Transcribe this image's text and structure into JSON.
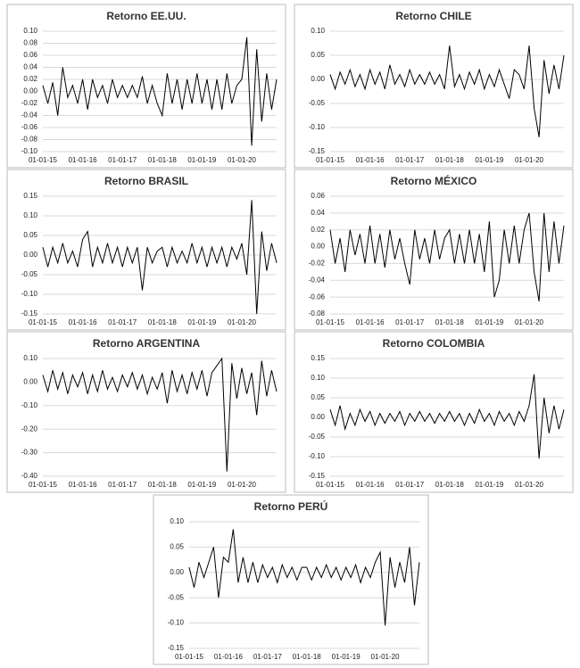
{
  "chart_data": [
    {
      "type": "line",
      "title": "Retorno EE.UU.",
      "color": "#000000",
      "grid": true,
      "categories": [
        "01-01-15",
        null,
        null,
        null,
        null,
        null,
        null,
        null,
        "01-01-16",
        null,
        null,
        null,
        null,
        null,
        null,
        null,
        "01-01-17",
        null,
        null,
        null,
        null,
        null,
        null,
        null,
        "01-01-18",
        null,
        null,
        null,
        null,
        null,
        null,
        null,
        "01-01-19",
        null,
        null,
        null,
        null,
        null,
        null,
        null,
        "01-01-20",
        null,
        null,
        null,
        null,
        null,
        null,
        null
      ],
      "values": [
        0.01,
        -0.02,
        0.015,
        -0.04,
        0.04,
        -0.01,
        0.01,
        -0.02,
        0.02,
        -0.03,
        0.02,
        -0.01,
        0.01,
        -0.02,
        0.02,
        -0.01,
        0.01,
        -0.01,
        0.01,
        -0.01,
        0.025,
        -0.02,
        0.01,
        -0.02,
        -0.04,
        0.03,
        -0.02,
        0.02,
        -0.03,
        0.02,
        -0.02,
        0.03,
        -0.02,
        0.02,
        -0.03,
        0.02,
        -0.03,
        0.03,
        -0.02,
        0.01,
        0.02,
        0.09,
        -0.09,
        0.07,
        -0.05,
        0.03,
        -0.03,
        0.02
      ],
      "ylim": [
        -0.1,
        0.1
      ],
      "yticks": [
        {
          "value": -0.1,
          "label": "-0.10"
        },
        {
          "value": -0.08,
          "label": "-0.08"
        },
        {
          "value": -0.06,
          "label": "-0.06"
        },
        {
          "value": -0.04,
          "label": "-0.04"
        },
        {
          "value": -0.02,
          "label": "-0.02"
        },
        {
          "value": 0,
          "label": "0.00"
        },
        {
          "value": 0.02,
          "label": "0.02"
        },
        {
          "value": 0.04,
          "label": "0.04"
        },
        {
          "value": 0.06,
          "label": "0.06"
        },
        {
          "value": 0.08,
          "label": "0.08"
        },
        {
          "value": 0.1,
          "label": "0.10"
        }
      ]
    },
    {
      "type": "line",
      "title": "Retorno CHILE",
      "color": "#000000",
      "grid": true,
      "categories": [
        "01-01-15",
        null,
        null,
        null,
        null,
        null,
        null,
        null,
        "01-01-16",
        null,
        null,
        null,
        null,
        null,
        null,
        null,
        "01-01-17",
        null,
        null,
        null,
        null,
        null,
        null,
        null,
        "01-01-18",
        null,
        null,
        null,
        null,
        null,
        null,
        null,
        "01-01-19",
        null,
        null,
        null,
        null,
        null,
        null,
        null,
        "01-01-20",
        null,
        null,
        null,
        null,
        null,
        null,
        null
      ],
      "values": [
        0.01,
        -0.02,
        0.015,
        -0.01,
        0.02,
        -0.015,
        0.01,
        -0.02,
        0.02,
        -0.01,
        0.015,
        -0.02,
        0.03,
        -0.01,
        0.01,
        -0.015,
        0.02,
        -0.01,
        0.01,
        -0.01,
        0.015,
        -0.01,
        0.01,
        -0.02,
        0.07,
        -0.015,
        0.01,
        -0.02,
        0.015,
        -0.01,
        0.02,
        -0.02,
        0.01,
        -0.015,
        0.02,
        -0.01,
        -0.04,
        0.02,
        0.01,
        -0.02,
        0.07,
        -0.06,
        -0.12,
        0.04,
        -0.03,
        0.03,
        -0.02,
        0.05
      ],
      "ylim": [
        -0.15,
        0.1
      ],
      "yticks": [
        {
          "value": -0.15,
          "label": "-0.15"
        },
        {
          "value": -0.1,
          "label": "-0.10"
        },
        {
          "value": -0.05,
          "label": "-0.05"
        },
        {
          "value": 0,
          "label": "0.00"
        },
        {
          "value": 0.05,
          "label": "0.05"
        },
        {
          "value": 0.1,
          "label": "0.10"
        }
      ]
    },
    {
      "type": "line",
      "title": "Retorno BRASIL",
      "color": "#000000",
      "grid": true,
      "categories": [
        "01-01-15",
        null,
        null,
        null,
        null,
        null,
        null,
        null,
        "01-01-16",
        null,
        null,
        null,
        null,
        null,
        null,
        null,
        "01-01-17",
        null,
        null,
        null,
        null,
        null,
        null,
        null,
        "01-01-18",
        null,
        null,
        null,
        null,
        null,
        null,
        null,
        "01-01-19",
        null,
        null,
        null,
        null,
        null,
        null,
        null,
        "01-01-20",
        null,
        null,
        null,
        null,
        null,
        null,
        null
      ],
      "values": [
        0.02,
        -0.03,
        0.02,
        -0.02,
        0.03,
        -0.02,
        0.01,
        -0.03,
        0.04,
        0.06,
        -0.03,
        0.02,
        -0.02,
        0.03,
        -0.02,
        0.02,
        -0.03,
        0.02,
        -0.02,
        0.02,
        -0.09,
        0.02,
        -0.02,
        0.01,
        0.02,
        -0.03,
        0.02,
        -0.02,
        0.01,
        -0.02,
        0.03,
        -0.02,
        0.02,
        -0.03,
        0.02,
        -0.02,
        0.02,
        -0.03,
        0.02,
        -0.01,
        0.03,
        -0.05,
        0.14,
        -0.15,
        0.06,
        -0.04,
        0.03,
        -0.02
      ],
      "ylim": [
        -0.15,
        0.15
      ],
      "yticks": [
        {
          "value": -0.15,
          "label": "-0.15"
        },
        {
          "value": -0.1,
          "label": "-0.10"
        },
        {
          "value": -0.05,
          "label": "-0.05"
        },
        {
          "value": 0,
          "label": "0.00"
        },
        {
          "value": 0.05,
          "label": "0.05"
        },
        {
          "value": 0.1,
          "label": "0.10"
        },
        {
          "value": 0.15,
          "label": "0.15"
        }
      ]
    },
    {
      "type": "line",
      "title": "Retorno MÉXICO",
      "color": "#000000",
      "grid": true,
      "categories": [
        "01-01-15",
        null,
        null,
        null,
        null,
        null,
        null,
        null,
        "01-01-16",
        null,
        null,
        null,
        null,
        null,
        null,
        null,
        "01-01-17",
        null,
        null,
        null,
        null,
        null,
        null,
        null,
        "01-01-18",
        null,
        null,
        null,
        null,
        null,
        null,
        null,
        "01-01-19",
        null,
        null,
        null,
        null,
        null,
        null,
        null,
        "01-01-20",
        null,
        null,
        null,
        null,
        null,
        null,
        null
      ],
      "values": [
        0.02,
        -0.02,
        0.01,
        -0.03,
        0.02,
        -0.01,
        0.015,
        -0.02,
        0.025,
        -0.02,
        0.015,
        -0.025,
        0.02,
        -0.015,
        0.01,
        -0.02,
        -0.045,
        0.02,
        -0.015,
        0.01,
        -0.02,
        0.02,
        -0.015,
        0.01,
        0.02,
        -0.02,
        0.015,
        -0.02,
        0.02,
        -0.02,
        0.015,
        -0.03,
        0.03,
        -0.06,
        -0.04,
        0.02,
        -0.02,
        0.025,
        -0.02,
        0.02,
        0.04,
        -0.03,
        -0.065,
        0.04,
        -0.03,
        0.03,
        -0.02,
        0.025
      ],
      "ylim": [
        -0.08,
        0.06
      ],
      "yticks": [
        {
          "value": -0.08,
          "label": "-0.08"
        },
        {
          "value": -0.06,
          "label": "-0.06"
        },
        {
          "value": -0.04,
          "label": "-0.04"
        },
        {
          "value": -0.02,
          "label": "-0.02"
        },
        {
          "value": 0,
          "label": "0.00"
        },
        {
          "value": 0.02,
          "label": "0.02"
        },
        {
          "value": 0.04,
          "label": "0.04"
        },
        {
          "value": 0.06,
          "label": "0.06"
        }
      ]
    },
    {
      "type": "line",
      "title": "Retorno ARGENTINA",
      "color": "#000000",
      "grid": true,
      "categories": [
        "01-01-15",
        null,
        null,
        null,
        null,
        null,
        null,
        null,
        "01-01-16",
        null,
        null,
        null,
        null,
        null,
        null,
        null,
        "01-01-17",
        null,
        null,
        null,
        null,
        null,
        null,
        null,
        "01-01-18",
        null,
        null,
        null,
        null,
        null,
        null,
        null,
        "01-01-19",
        null,
        null,
        null,
        null,
        null,
        null,
        null,
        "01-01-20",
        null,
        null,
        null,
        null,
        null,
        null,
        null
      ],
      "values": [
        0.03,
        -0.04,
        0.05,
        -0.03,
        0.04,
        -0.05,
        0.03,
        -0.02,
        0.04,
        -0.05,
        0.03,
        -0.04,
        0.05,
        -0.03,
        0.02,
        -0.04,
        0.03,
        -0.02,
        0.04,
        -0.03,
        0.03,
        -0.05,
        0.02,
        -0.03,
        0.04,
        -0.09,
        0.05,
        -0.04,
        0.03,
        -0.05,
        0.04,
        -0.03,
        0.05,
        -0.06,
        0.04,
        0.07,
        0.1,
        -0.38,
        0.08,
        -0.07,
        0.06,
        -0.05,
        0.04,
        -0.14,
        0.09,
        -0.06,
        0.05,
        -0.04
      ],
      "ylim": [
        -0.4,
        0.1
      ],
      "yticks": [
        {
          "value": -0.4,
          "label": "-0.40"
        },
        {
          "value": -0.3,
          "label": "-0.30"
        },
        {
          "value": -0.2,
          "label": "-0.20"
        },
        {
          "value": -0.1,
          "label": "-0.10"
        },
        {
          "value": 0,
          "label": "0.00"
        },
        {
          "value": 0.1,
          "label": "0.10"
        }
      ]
    },
    {
      "type": "line",
      "title": "Retorno COLOMBIA",
      "color": "#000000",
      "grid": true,
      "categories": [
        "01-01-15",
        null,
        null,
        null,
        null,
        null,
        null,
        null,
        "01-01-16",
        null,
        null,
        null,
        null,
        null,
        null,
        null,
        "01-01-17",
        null,
        null,
        null,
        null,
        null,
        null,
        null,
        "01-01-18",
        null,
        null,
        null,
        null,
        null,
        null,
        null,
        "01-01-19",
        null,
        null,
        null,
        null,
        null,
        null,
        null,
        "01-01-20",
        null,
        null,
        null,
        null,
        null,
        null,
        null
      ],
      "values": [
        0.02,
        -0.02,
        0.03,
        -0.03,
        0.01,
        -0.02,
        0.02,
        -0.01,
        0.015,
        -0.02,
        0.01,
        -0.015,
        0.01,
        -0.01,
        0.015,
        -0.02,
        0.01,
        -0.01,
        0.015,
        -0.01,
        0.01,
        -0.015,
        0.01,
        -0.01,
        0.015,
        -0.01,
        0.01,
        -0.02,
        0.01,
        -0.015,
        0.02,
        -0.01,
        0.01,
        -0.02,
        0.015,
        -0.01,
        0.01,
        -0.02,
        0.015,
        -0.01,
        0.03,
        0.11,
        -0.105,
        0.05,
        -0.04,
        0.03,
        -0.03,
        0.02
      ],
      "ylim": [
        -0.15,
        0.15
      ],
      "yticks": [
        {
          "value": -0.15,
          "label": "-0.15"
        },
        {
          "value": -0.1,
          "label": "-0.10"
        },
        {
          "value": -0.05,
          "label": "-0.05"
        },
        {
          "value": 0,
          "label": "0.00"
        },
        {
          "value": 0.05,
          "label": "0.05"
        },
        {
          "value": 0.1,
          "label": "0.10"
        },
        {
          "value": 0.15,
          "label": "0.15"
        }
      ]
    },
    {
      "type": "line",
      "title": "Retorno PERÚ",
      "color": "#000000",
      "grid": true,
      "categories": [
        "01-01-15",
        null,
        null,
        null,
        null,
        null,
        null,
        null,
        "01-01-16",
        null,
        null,
        null,
        null,
        null,
        null,
        null,
        "01-01-17",
        null,
        null,
        null,
        null,
        null,
        null,
        null,
        "01-01-18",
        null,
        null,
        null,
        null,
        null,
        null,
        null,
        "01-01-19",
        null,
        null,
        null,
        null,
        null,
        null,
        null,
        "01-01-20",
        null,
        null,
        null,
        null,
        null,
        null,
        null
      ],
      "values": [
        0.01,
        -0.03,
        0.02,
        -0.01,
        0.02,
        0.05,
        -0.05,
        0.03,
        0.02,
        0.085,
        -0.02,
        0.03,
        -0.02,
        0.02,
        -0.02,
        0.015,
        -0.01,
        0.01,
        -0.02,
        0.015,
        -0.01,
        0.01,
        -0.015,
        0.01,
        0.01,
        -0.015,
        0.01,
        -0.01,
        0.015,
        -0.01,
        0.01,
        -0.015,
        0.01,
        -0.01,
        0.015,
        -0.02,
        0.01,
        -0.01,
        0.02,
        0.04,
        -0.105,
        0.03,
        -0.03,
        0.02,
        -0.02,
        0.05,
        -0.065,
        0.02
      ],
      "ylim": [
        -0.15,
        0.1
      ],
      "yticks": [
        {
          "value": -0.15,
          "label": "-0.15"
        },
        {
          "value": -0.1,
          "label": "-0.10"
        },
        {
          "value": -0.05,
          "label": "-0.05"
        },
        {
          "value": 0,
          "label": "0.00"
        },
        {
          "value": 0.05,
          "label": "0.05"
        },
        {
          "value": 0.1,
          "label": "0.10"
        }
      ]
    }
  ]
}
